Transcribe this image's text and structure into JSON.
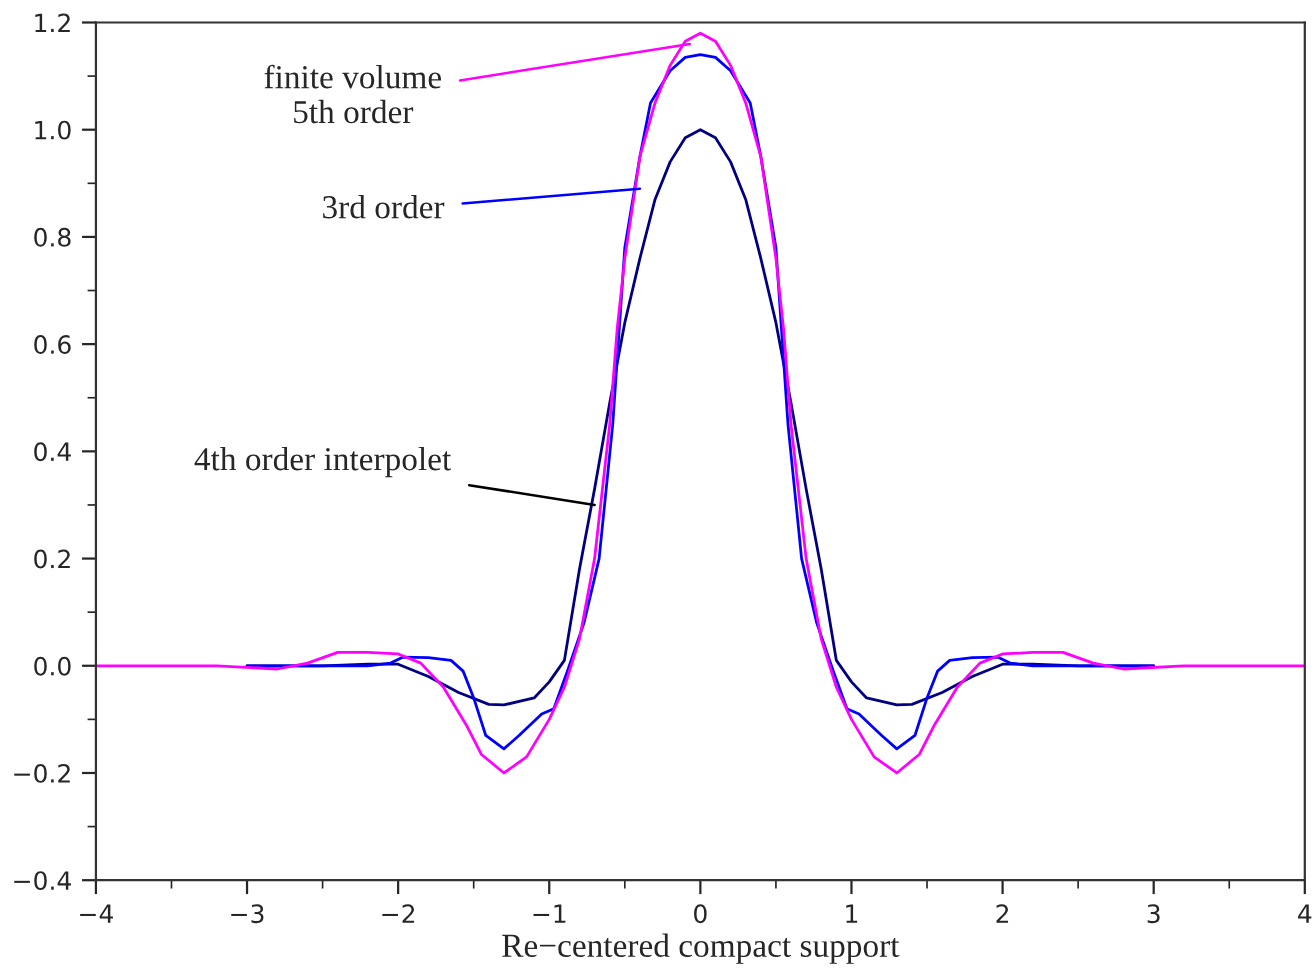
{
  "chart_data": {
    "type": "line",
    "xlabel": "Re−centered compact support",
    "xlim": [
      -4,
      4
    ],
    "ylim": [
      -0.4,
      1.2
    ],
    "xticks": [
      {
        "value": -4,
        "label": "−4"
      },
      {
        "value": -3,
        "label": "−3"
      },
      {
        "value": -2,
        "label": "−2"
      },
      {
        "value": -1,
        "label": "−1"
      },
      0,
      1,
      2,
      3,
      4
    ],
    "yticks": [
      {
        "value": -0.4,
        "label": "−0.4"
      },
      {
        "value": -0.2,
        "label": "−0.2"
      },
      {
        "value": 0,
        "label": "0.0"
      },
      0.2,
      0.4,
      0.6,
      0.8,
      {
        "value": 1.0,
        "label": "1.0"
      },
      1.2
    ],
    "grid": false,
    "legend": false,
    "marker": "none",
    "line_style": "solid",
    "series": [
      {
        "color": "#000080",
        "x": [
          -3,
          -2.5,
          -2.2,
          -2,
          -1.8,
          -1.6,
          -1.4,
          -1.3,
          -1.1,
          -1.0,
          -0.9,
          -0.8,
          -0.7,
          -0.6,
          -0.5,
          -0.4,
          -0.3,
          -0.2,
          -0.1,
          0,
          0.1,
          0.2,
          0.3,
          0.4,
          0.5,
          0.6,
          0.7,
          0.8,
          0.9,
          1.0,
          1.1,
          1.3,
          1.4,
          1.6,
          1.8,
          2,
          2.2,
          2.5,
          3
        ],
        "values": [
          0,
          0,
          0.003,
          0.003,
          -0.02,
          -0.05,
          -0.072,
          -0.073,
          -0.06,
          -0.03,
          0.01,
          0.18,
          0.33,
          0.49,
          0.64,
          0.76,
          0.87,
          0.94,
          0.985,
          1.0,
          0.985,
          0.94,
          0.87,
          0.76,
          0.64,
          0.49,
          0.33,
          0.18,
          0.01,
          -0.03,
          -0.06,
          -0.073,
          -0.072,
          -0.05,
          -0.02,
          0.003,
          0.003,
          0,
          0
        ]
      },
      {
        "color": "#0000ff",
        "x": [
          -3,
          -2.5,
          -2.2,
          -2.05,
          -1.97,
          -1.8,
          -1.65,
          -1.57,
          -1.5,
          -1.42,
          -1.3,
          -1.2,
          -1.05,
          -0.97,
          -0.88,
          -0.77,
          -0.67,
          -0.58,
          -0.5,
          -0.4,
          -0.33,
          -0.2,
          -0.1,
          0,
          0.1,
          0.2,
          0.33,
          0.4,
          0.5,
          0.58,
          0.67,
          0.77,
          0.88,
          0.97,
          1.05,
          1.2,
          1.3,
          1.42,
          1.5,
          1.57,
          1.65,
          1.8,
          1.97,
          2.05,
          2.2,
          2.5,
          3
        ],
        "values": [
          0,
          0,
          0,
          0.005,
          0.016,
          0.015,
          0.01,
          -0.01,
          -0.06,
          -0.13,
          -0.155,
          -0.13,
          -0.09,
          -0.08,
          -0.01,
          0.08,
          0.2,
          0.45,
          0.78,
          0.95,
          1.05,
          1.11,
          1.135,
          1.14,
          1.135,
          1.11,
          1.05,
          0.95,
          0.78,
          0.45,
          0.2,
          0.08,
          -0.01,
          -0.08,
          -0.09,
          -0.13,
          -0.155,
          -0.13,
          -0.06,
          -0.01,
          0.01,
          0.015,
          0.016,
          0.005,
          0,
          0,
          0
        ]
      },
      {
        "color": "#ff00ff",
        "x": [
          -4,
          -3.2,
          -2.8,
          -2.6,
          -2.4,
          -2.2,
          -2.0,
          -1.85,
          -1.7,
          -1.55,
          -1.45,
          -1.3,
          -1.15,
          -1.0,
          -0.9,
          -0.8,
          -0.7,
          -0.6,
          -0.55,
          -0.5,
          -0.4,
          -0.3,
          -0.2,
          -0.1,
          0,
          0.1,
          0.2,
          0.3,
          0.4,
          0.5,
          0.55,
          0.6,
          0.7,
          0.8,
          0.9,
          1.0,
          1.15,
          1.3,
          1.45,
          1.55,
          1.7,
          1.85,
          2.0,
          2.2,
          2.4,
          2.6,
          2.8,
          3.2,
          4
        ],
        "values": [
          0,
          0,
          -0.006,
          0.005,
          0.025,
          0.025,
          0.022,
          0.005,
          -0.04,
          -0.11,
          -0.165,
          -0.2,
          -0.17,
          -0.1,
          -0.04,
          0.05,
          0.2,
          0.45,
          0.63,
          0.76,
          0.95,
          1.05,
          1.12,
          1.165,
          1.18,
          1.165,
          1.12,
          1.05,
          0.95,
          0.76,
          0.63,
          0.45,
          0.2,
          0.05,
          -0.04,
          -0.1,
          -0.17,
          -0.2,
          -0.165,
          -0.11,
          -0.04,
          0.005,
          0.022,
          0.025,
          0.025,
          0.005,
          -0.006,
          0,
          0
        ]
      }
    ],
    "annotations": [
      {
        "text": "finite volume\n5th order",
        "x": -0.07,
        "y": 1.16
      },
      {
        "text": "3rd order",
        "x": -0.4,
        "y": 0.89
      },
      {
        "text": "4th order interpolet",
        "x": -0.7,
        "y": 0.3
      }
    ]
  }
}
